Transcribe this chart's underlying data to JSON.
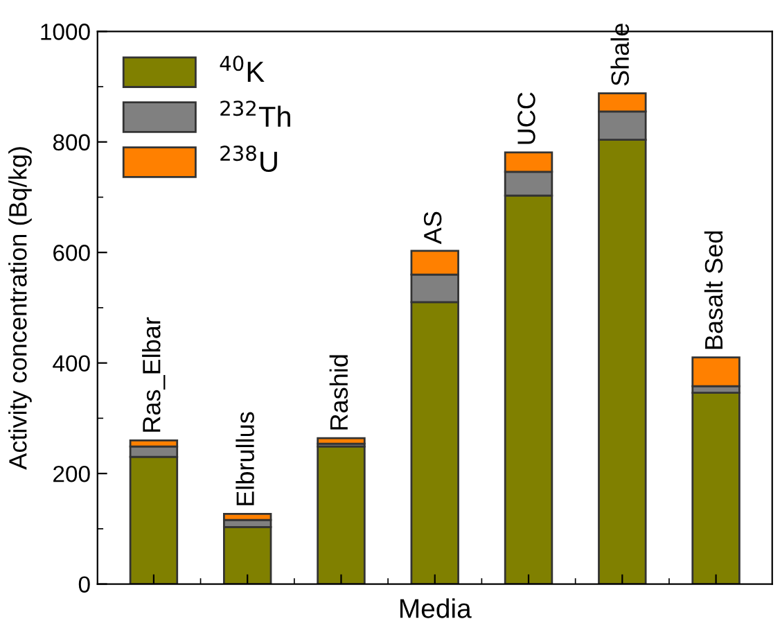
{
  "chart_data": {
    "type": "bar",
    "stacked": true,
    "xlabel": "Media",
    "ylabel": "Activity concentration (Bq/kg)",
    "categories": [
      "Ras_Elbar",
      "Elbrullus",
      "Rashid",
      "AS",
      "UCC",
      "Shale",
      "Basalt Sed"
    ],
    "series": [
      {
        "name": "$^{40}$K",
        "color": "#808000",
        "values": [
          230,
          103,
          249,
          510,
          703,
          804,
          346
        ]
      },
      {
        "name": "$^{232}$Th",
        "color": "#808080",
        "values": [
          19,
          13,
          5,
          50,
          43,
          51,
          12
        ]
      },
      {
        "name": "$^{238}$U",
        "color": "#ff8000",
        "values": [
          11,
          11,
          10,
          43,
          35,
          33,
          52
        ]
      }
    ],
    "ylim": [
      0,
      1000
    ],
    "yticks": [
      0,
      200,
      400,
      600,
      800,
      1000
    ],
    "tick_labels": "y",
    "grid": false,
    "legend": "top left"
  }
}
